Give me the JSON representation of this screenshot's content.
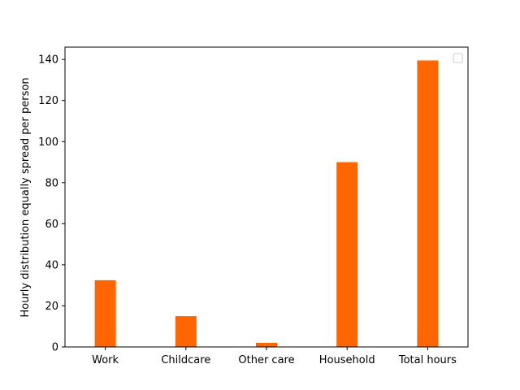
{
  "chart_data": {
    "type": "bar",
    "title": "",
    "xlabel": "",
    "ylabel": "Hourly distribution equally spread per person",
    "categories": [
      "Work",
      "Childcare",
      "Other care",
      "Household",
      "Total hours"
    ],
    "values": [
      32.5,
      15.0,
      2.0,
      90.0,
      139.5
    ],
    "ylim": [
      0,
      146
    ],
    "yticks": [
      0,
      20,
      40,
      60,
      80,
      100,
      120,
      140
    ],
    "bar_color": "#ff6600",
    "legend": {
      "visible": true,
      "placement": "top-right",
      "entries": []
    },
    "grid": false
  }
}
